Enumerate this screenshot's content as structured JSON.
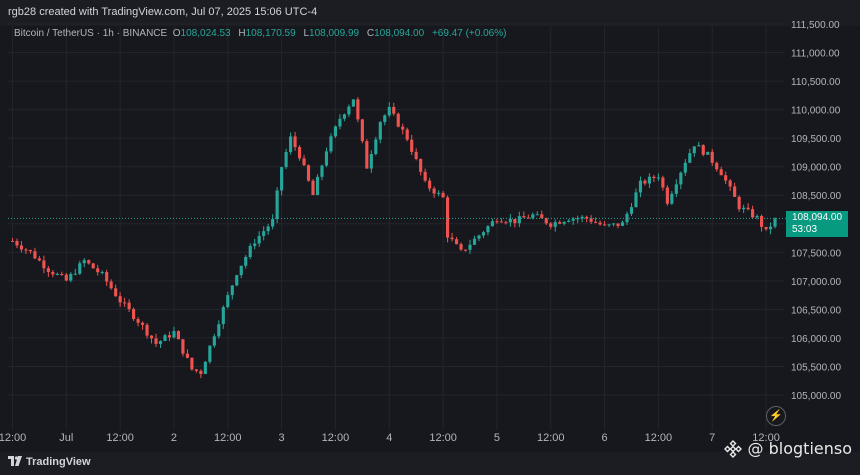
{
  "header": {
    "created_by": "rgb28 created with TradingView.com, Jul 07, 2025 15:06 UTC-4"
  },
  "legend": {
    "symbol": "Bitcoin / TetherUS · 1h · BINANCE",
    "o_label": "O",
    "o_value": "108,024.53",
    "h_label": "H",
    "h_value": "108,170.59",
    "l_label": "L",
    "l_value": "108,009.99",
    "c_label": "C",
    "c_value": "108,094.00",
    "change": "+69.47 (+0.06%)"
  },
  "price_tag": {
    "price": "108,094.00",
    "countdown": "53:03"
  },
  "footer": {
    "brand": "TradingView",
    "watermark": "@ blogtienso"
  },
  "colors": {
    "up": "#26a69a",
    "down": "#ef5350",
    "background": "#17181d",
    "grid": "#23252b"
  },
  "chart_data": {
    "type": "candlestick",
    "title": "Bitcoin / TetherUS · 1h · BINANCE",
    "y_ticks": [
      105000,
      105500,
      106000,
      106500,
      107000,
      107500,
      108000,
      108500,
      109000,
      109500,
      110000,
      110500,
      111000,
      111500
    ],
    "y_tick_labels": [
      "105,000.00",
      "105,500.00",
      "106,000.00",
      "106,500.00",
      "107,000.00",
      "107,500.00",
      "108,000.00",
      "108,500.00",
      "109,000.00",
      "109,500.00",
      "110,000.00",
      "110,500.00",
      "111,000.00",
      "111,500.00"
    ],
    "ylim": [
      104600,
      111700
    ],
    "x_tick_labels": [
      "12:00",
      "Jul",
      "12:00",
      "2",
      "12:00",
      "3",
      "12:00",
      "4",
      "12:00",
      "5",
      "12:00",
      "6",
      "12:00",
      "7",
      "12:00"
    ],
    "x_tick_hours": [
      0,
      12,
      24,
      36,
      48,
      60,
      72,
      84,
      96,
      108,
      120,
      132,
      144,
      156,
      168
    ],
    "last_price": 108094.0,
    "close_path": [
      [
        0,
        107700
      ],
      [
        4,
        107500
      ],
      [
        8,
        107200
      ],
      [
        12,
        107000
      ],
      [
        16,
        107350
      ],
      [
        20,
        107100
      ],
      [
        24,
        106650
      ],
      [
        28,
        106300
      ],
      [
        32,
        105900
      ],
      [
        36,
        106100
      ],
      [
        40,
        105450
      ],
      [
        42,
        105400
      ],
      [
        46,
        106300
      ],
      [
        50,
        107150
      ],
      [
        54,
        107700
      ],
      [
        58,
        108050
      ],
      [
        60,
        109000
      ],
      [
        62,
        109500
      ],
      [
        64,
        109200
      ],
      [
        67,
        108500
      ],
      [
        70,
        109300
      ],
      [
        73,
        109850
      ],
      [
        76,
        110200
      ],
      [
        79,
        109000
      ],
      [
        82,
        109800
      ],
      [
        84,
        110000
      ],
      [
        88,
        109500
      ],
      [
        92,
        108700
      ],
      [
        96,
        108450
      ],
      [
        97,
        107800
      ],
      [
        100,
        107500
      ],
      [
        104,
        107800
      ],
      [
        108,
        108100
      ],
      [
        112,
        108050
      ],
      [
        116,
        108150
      ],
      [
        120,
        108000
      ],
      [
        124,
        108100
      ],
      [
        128,
        108100
      ],
      [
        132,
        107950
      ],
      [
        136,
        108000
      ],
      [
        140,
        108700
      ],
      [
        144,
        108850
      ],
      [
        146,
        108400
      ],
      [
        150,
        109100
      ],
      [
        152,
        109400
      ],
      [
        155,
        109200
      ],
      [
        158,
        108900
      ],
      [
        162,
        108300
      ],
      [
        166,
        108100
      ],
      [
        168,
        107850
      ],
      [
        170,
        108094
      ]
    ]
  }
}
